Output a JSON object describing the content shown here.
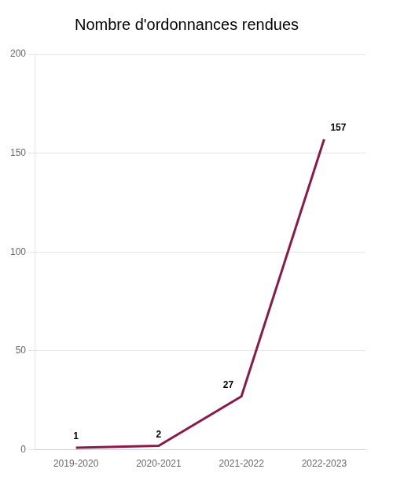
{
  "chart_data": {
    "type": "line",
    "title": "Nombre d'ordonnances rendues",
    "categories": [
      "2019-2020",
      "2020-2021",
      "2021-2022",
      "2022-2023"
    ],
    "values": [
      1,
      2,
      27,
      157
    ],
    "color": "#8B1A4A",
    "ylim": [
      0,
      200
    ],
    "yticks": [
      0,
      50,
      100,
      150,
      200
    ],
    "grid": true,
    "data_labels": true
  }
}
